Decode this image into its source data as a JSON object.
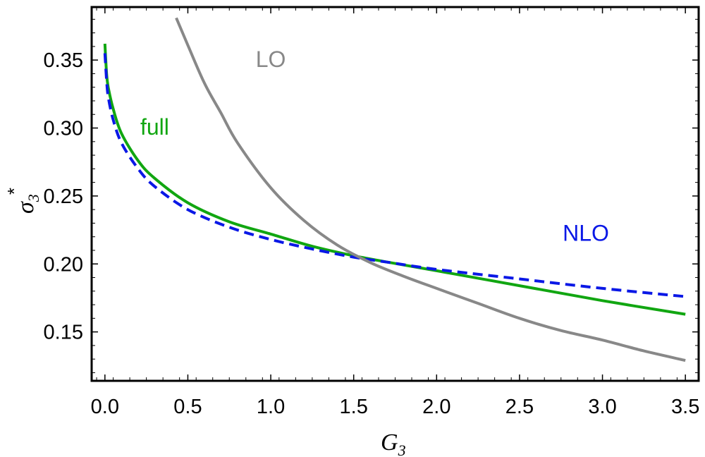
{
  "chart_data": {
    "type": "line",
    "title": "",
    "xlabel": {
      "main": "G",
      "sub": "3"
    },
    "ylabel": {
      "main": "σ",
      "sub": "3",
      "sup": "*"
    },
    "xlim": [
      -0.08,
      3.58
    ],
    "ylim": [
      0.114,
      0.389
    ],
    "x_ticks": [
      0.0,
      0.5,
      1.0,
      1.5,
      2.0,
      2.5,
      3.0,
      3.5
    ],
    "x_tick_labels": [
      "0.0",
      "0.5",
      "1.0",
      "1.5",
      "2.0",
      "2.5",
      "3.0",
      "3.5"
    ],
    "y_ticks": [
      0.15,
      0.2,
      0.25,
      0.3,
      0.35
    ],
    "y_tick_labels": [
      "0.15",
      "0.20",
      "0.25",
      "0.30",
      "0.35"
    ],
    "grid": false,
    "legend": "inline labels",
    "series": [
      {
        "name": "full",
        "color": "#11a611",
        "dash": "solid",
        "x": [
          0.0,
          0.01,
          0.02,
          0.05,
          0.1,
          0.2,
          0.3,
          0.5,
          0.75,
          1.0,
          1.25,
          1.5,
          1.72,
          2.0,
          2.5,
          3.0,
          3.5
        ],
        "y": [
          0.362,
          0.34,
          0.33,
          0.314,
          0.296,
          0.276,
          0.263,
          0.245,
          0.231,
          0.222,
          0.213,
          0.206,
          0.201,
          0.195,
          0.184,
          0.173,
          0.163
        ]
      },
      {
        "name": "NLO",
        "color": "#0a18e6",
        "dash": "dashed",
        "x": [
          0.0,
          0.01,
          0.02,
          0.05,
          0.1,
          0.2,
          0.3,
          0.5,
          0.75,
          1.0,
          1.25,
          1.5,
          1.72,
          2.0,
          2.5,
          3.0,
          3.5
        ],
        "y": [
          0.355,
          0.335,
          0.323,
          0.306,
          0.289,
          0.27,
          0.257,
          0.24,
          0.227,
          0.218,
          0.211,
          0.205,
          0.201,
          0.196,
          0.189,
          0.182,
          0.176
        ]
      },
      {
        "name": "LO",
        "color": "#888888",
        "dash": "solid",
        "x": [
          0.43,
          0.5,
          0.6,
          0.7,
          0.8,
          1.0,
          1.2,
          1.4,
          1.6,
          1.8,
          2.0,
          2.25,
          2.5,
          2.75,
          3.0,
          3.25,
          3.5
        ],
        "y": [
          0.381,
          0.361,
          0.333,
          0.311,
          0.289,
          0.256,
          0.232,
          0.214,
          0.201,
          0.191,
          0.182,
          0.171,
          0.16,
          0.151,
          0.144,
          0.136,
          0.129
        ]
      }
    ],
    "annotations": [
      {
        "text": "LO",
        "series": "LO",
        "x": 1.0,
        "y": 0.345,
        "color": "#888888"
      },
      {
        "text": "full",
        "series": "full",
        "x": 0.3,
        "y": 0.295,
        "color": "#11a611"
      },
      {
        "text": "NLO",
        "series": "NLO",
        "x": 2.9,
        "y": 0.217,
        "color": "#0a18e6"
      }
    ]
  }
}
